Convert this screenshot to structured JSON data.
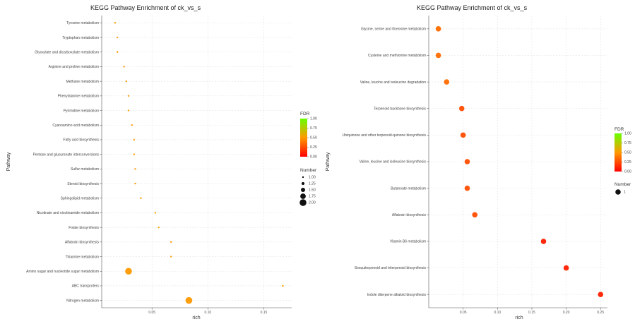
{
  "colors": {
    "low": "#ff0000",
    "mid": "#ff9900",
    "high": "#66ff00",
    "grid": "#e3e3e3"
  },
  "chart_data": [
    {
      "type": "scatter",
      "title": "KEGG Pathway Enrichment of ck_vs_s",
      "xlabel": "rich",
      "ylabel": "Pathway",
      "xlim": [
        0.005,
        0.175
      ],
      "xticks": [
        {
          "v": 0.05,
          "label": "0.05"
        },
        {
          "v": 0.1,
          "label": "0.10"
        },
        {
          "v": 0.15,
          "label": "0.15"
        }
      ],
      "categories": [
        "Tyrosine metabolism",
        "Tryptophan metabolism",
        "Glyoxylate and dicarboxylate metabolism",
        "Arginine and proline metabolism",
        "Methane metabolism",
        "Phenylalanine metabolism",
        "Pyrimidine metabolism",
        "Cyanoamino acid metabolism",
        "Fatty acid biosynthesis",
        "Pentose and glucuronate interconversions",
        "Sulfur metabolism",
        "Steroid biosynthesis",
        "Sphingolipid metabolism",
        "Nicotinate and nicotinamide metabolism",
        "Folate biosynthesis",
        "Aflatoxin biosynthesis",
        "Thiamine metabolism",
        "Amino sugar and nucleotide sugar metabolism",
        "ABC transporters",
        "Nitrogen metabolism"
      ],
      "points": [
        {
          "x": 0.017,
          "number": 1,
          "fdr": 0.5
        },
        {
          "x": 0.019,
          "number": 1,
          "fdr": 0.5
        },
        {
          "x": 0.019,
          "number": 1,
          "fdr": 0.5
        },
        {
          "x": 0.025,
          "number": 1,
          "fdr": 0.5
        },
        {
          "x": 0.027,
          "number": 1,
          "fdr": 0.5
        },
        {
          "x": 0.029,
          "number": 1,
          "fdr": 0.5
        },
        {
          "x": 0.029,
          "number": 1,
          "fdr": 0.5
        },
        {
          "x": 0.032,
          "number": 1,
          "fdr": 0.5
        },
        {
          "x": 0.034,
          "number": 1,
          "fdr": 0.5
        },
        {
          "x": 0.034,
          "number": 1,
          "fdr": 0.5
        },
        {
          "x": 0.035,
          "number": 1,
          "fdr": 0.5
        },
        {
          "x": 0.035,
          "number": 1,
          "fdr": 0.5
        },
        {
          "x": 0.04,
          "number": 1,
          "fdr": 0.5
        },
        {
          "x": 0.053,
          "number": 1,
          "fdr": 0.5
        },
        {
          "x": 0.056,
          "number": 1,
          "fdr": 0.5
        },
        {
          "x": 0.067,
          "number": 1,
          "fdr": 0.5
        },
        {
          "x": 0.067,
          "number": 1,
          "fdr": 0.5
        },
        {
          "x": 0.029,
          "number": 2,
          "fdr": 0.5
        },
        {
          "x": 0.167,
          "number": 1,
          "fdr": 0.5
        },
        {
          "x": 0.083,
          "number": 2,
          "fdr": 0.5
        }
      ],
      "legend_color": {
        "title": "FDR",
        "ticks": [
          "1.00",
          "0.75",
          "0.50",
          "0.25",
          "0.00"
        ]
      },
      "legend_size": {
        "title": "Number",
        "entries": [
          {
            "value": 1.0,
            "label": "1.00"
          },
          {
            "value": 1.25,
            "label": "1.25"
          },
          {
            "value": 1.5,
            "label": "1.50"
          },
          {
            "value": 1.75,
            "label": "1.75"
          },
          {
            "value": 2.0,
            "label": "2.00"
          }
        ]
      }
    },
    {
      "type": "scatter",
      "title": "KEGG Pathway Enrichment of ck_vs_s",
      "xlabel": "rich",
      "ylabel": "Pathway",
      "xlim": [
        0.0,
        0.26
      ],
      "xticks": [
        {
          "v": 0.05,
          "label": "0.05"
        },
        {
          "v": 0.1,
          "label": "0.10"
        },
        {
          "v": 0.15,
          "label": "0.15"
        },
        {
          "v": 0.2,
          "label": "0.20"
        },
        {
          "v": 0.25,
          "label": "0.25"
        }
      ],
      "categories": [
        "Glycine, serine and threonine metabolism",
        "Cysteine and methionine metabolism",
        "Valine, leucine and isoleucine degradation",
        "Terpenoid backbone biosynthesis",
        "Ubiquinone and other terpenoid-quinone biosynthesis",
        "Valine, leucine and isoleucine biosynthesis",
        "Butanoate metabolism",
        "Aflatoxin biosynthesis",
        "Vitamin B6 metabolism",
        "Sesquiterpenoid and triterpenoid biosynthesis",
        "Indole diterpene alkaloid biosynthesis"
      ],
      "points": [
        {
          "x": 0.014,
          "number": 1,
          "fdr": 0.35
        },
        {
          "x": 0.014,
          "number": 1,
          "fdr": 0.35
        },
        {
          "x": 0.026,
          "number": 1,
          "fdr": 0.35
        },
        {
          "x": 0.048,
          "number": 1,
          "fdr": 0.25
        },
        {
          "x": 0.05,
          "number": 1,
          "fdr": 0.25
        },
        {
          "x": 0.056,
          "number": 1,
          "fdr": 0.25
        },
        {
          "x": 0.056,
          "number": 1,
          "fdr": 0.25
        },
        {
          "x": 0.067,
          "number": 1,
          "fdr": 0.25
        },
        {
          "x": 0.167,
          "number": 1,
          "fdr": 0.1
        },
        {
          "x": 0.2,
          "number": 1,
          "fdr": 0.1
        },
        {
          "x": 0.25,
          "number": 1,
          "fdr": 0.1
        }
      ],
      "legend_color": {
        "title": "FDR",
        "ticks": [
          "1.00",
          "0.75",
          "0.50",
          "0.25",
          "0.00"
        ]
      },
      "legend_size": {
        "title": "Number",
        "entries": [
          {
            "value": 1,
            "label": "1"
          }
        ]
      }
    }
  ]
}
